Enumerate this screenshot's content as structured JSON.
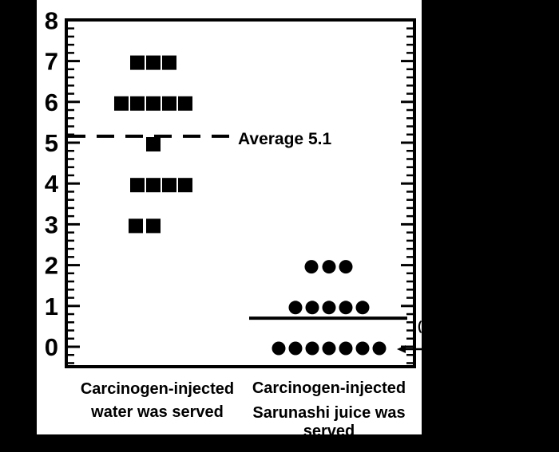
{
  "figure": {
    "background_color": "#000000",
    "panel_color": "#ffffff",
    "ink_color": "#000000"
  },
  "chart_data": {
    "type": "scatter",
    "subtype": "stacked-dot-plot",
    "title": "",
    "xlabel": "",
    "ylabel": "",
    "ylim": [
      -0.5,
      8
    ],
    "y_ticks": [
      "0",
      "1",
      "2",
      "3",
      "4",
      "5",
      "6",
      "7",
      "8"
    ],
    "y_tick_values": [
      0,
      1,
      2,
      3,
      4,
      5,
      6,
      7,
      8
    ],
    "y_minor_step": 0.2,
    "grid": false,
    "legend": "none",
    "marker_color": "#000000",
    "groups": [
      {
        "label_lines": [
          "Carcinogen-injected",
          "water was served"
        ],
        "marker": "square",
        "rows": [
          {
            "y": 7,
            "count": 3,
            "x_offsets": [
              -20,
              0,
              20
            ]
          },
          {
            "y": 6,
            "count": 5,
            "x_offsets": [
              -40,
              -20,
              0,
              20,
              40
            ]
          },
          {
            "y": 5,
            "count": 1,
            "x_offsets": [
              0
            ]
          },
          {
            "y": 4,
            "count": 4,
            "x_offsets": [
              -20,
              0,
              20,
              40
            ]
          },
          {
            "y": 3,
            "count": 2,
            "x_offsets": [
              -22,
              0
            ]
          }
        ]
      },
      {
        "label_lines": [
          "Carcinogen-injected",
          "Sarunashi juice was",
          "served"
        ],
        "marker": "circle",
        "rows": [
          {
            "y": 2,
            "count": 3,
            "x_offsets": [
              -22,
              0,
              21
            ]
          },
          {
            "y": 1,
            "count": 5,
            "x_offsets": [
              -42,
              -21,
              0,
              21,
              42
            ]
          },
          {
            "y": 0,
            "count": 7,
            "x_offsets": [
              -63,
              -42,
              -21,
              0,
              21,
              42,
              63
            ]
          }
        ]
      }
    ],
    "annotations": {
      "average_line": {
        "y": 5.1,
        "style": "dashed",
        "label": "Average 5.1"
      },
      "reference_line": {
        "y": 0.7,
        "style": "solid"
      },
      "arrow": {
        "points_to_y": 0,
        "direction": "left"
      },
      "clipped_glyph": "("
    }
  }
}
